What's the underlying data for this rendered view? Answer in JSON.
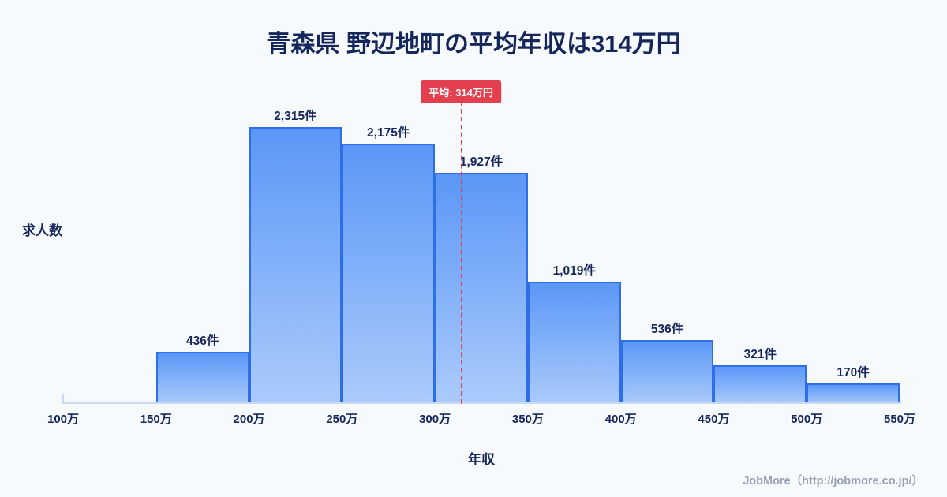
{
  "title": "青森県 野辺地町の平均年収は314万円",
  "chart_data": {
    "type": "bar",
    "title": "青森県 野辺地町の平均年収は314万円",
    "xlabel": "年収",
    "ylabel": "求人数",
    "x_ticks": [
      "100万",
      "150万",
      "200万",
      "250万",
      "300万",
      "350万",
      "400万",
      "450万",
      "500万",
      "550万"
    ],
    "bin_ranges": [
      "100万-150万",
      "150万-200万",
      "200万-250万",
      "250万-300万",
      "300万-350万",
      "350万-400万",
      "400万-450万",
      "450万-500万",
      "500万-550万"
    ],
    "values": [
      15,
      436,
      2315,
      2175,
      1927,
      1019,
      536,
      321,
      170
    ],
    "labels": [
      "",
      "436件",
      "2,315件",
      "2,175件",
      "1,927件",
      "1,019件",
      "536件",
      "321件",
      "170件"
    ],
    "ylim": [
      0,
      2450
    ],
    "grid": false,
    "legend": "none",
    "average": {
      "label": "平均: 314万円",
      "value": 314,
      "x_range": [
        100,
        550
      ]
    },
    "colors": {
      "bar_fill_top": "#5b97f7",
      "bar_fill_bottom": "#abcbfb",
      "bar_border": "#2e6fe8",
      "accent_red": "#e2404e",
      "text_navy": "#15265b",
      "background": "#f7fafd"
    }
  },
  "footer": {
    "credit": "JobMore（http://jobmore.co.jp/）"
  }
}
